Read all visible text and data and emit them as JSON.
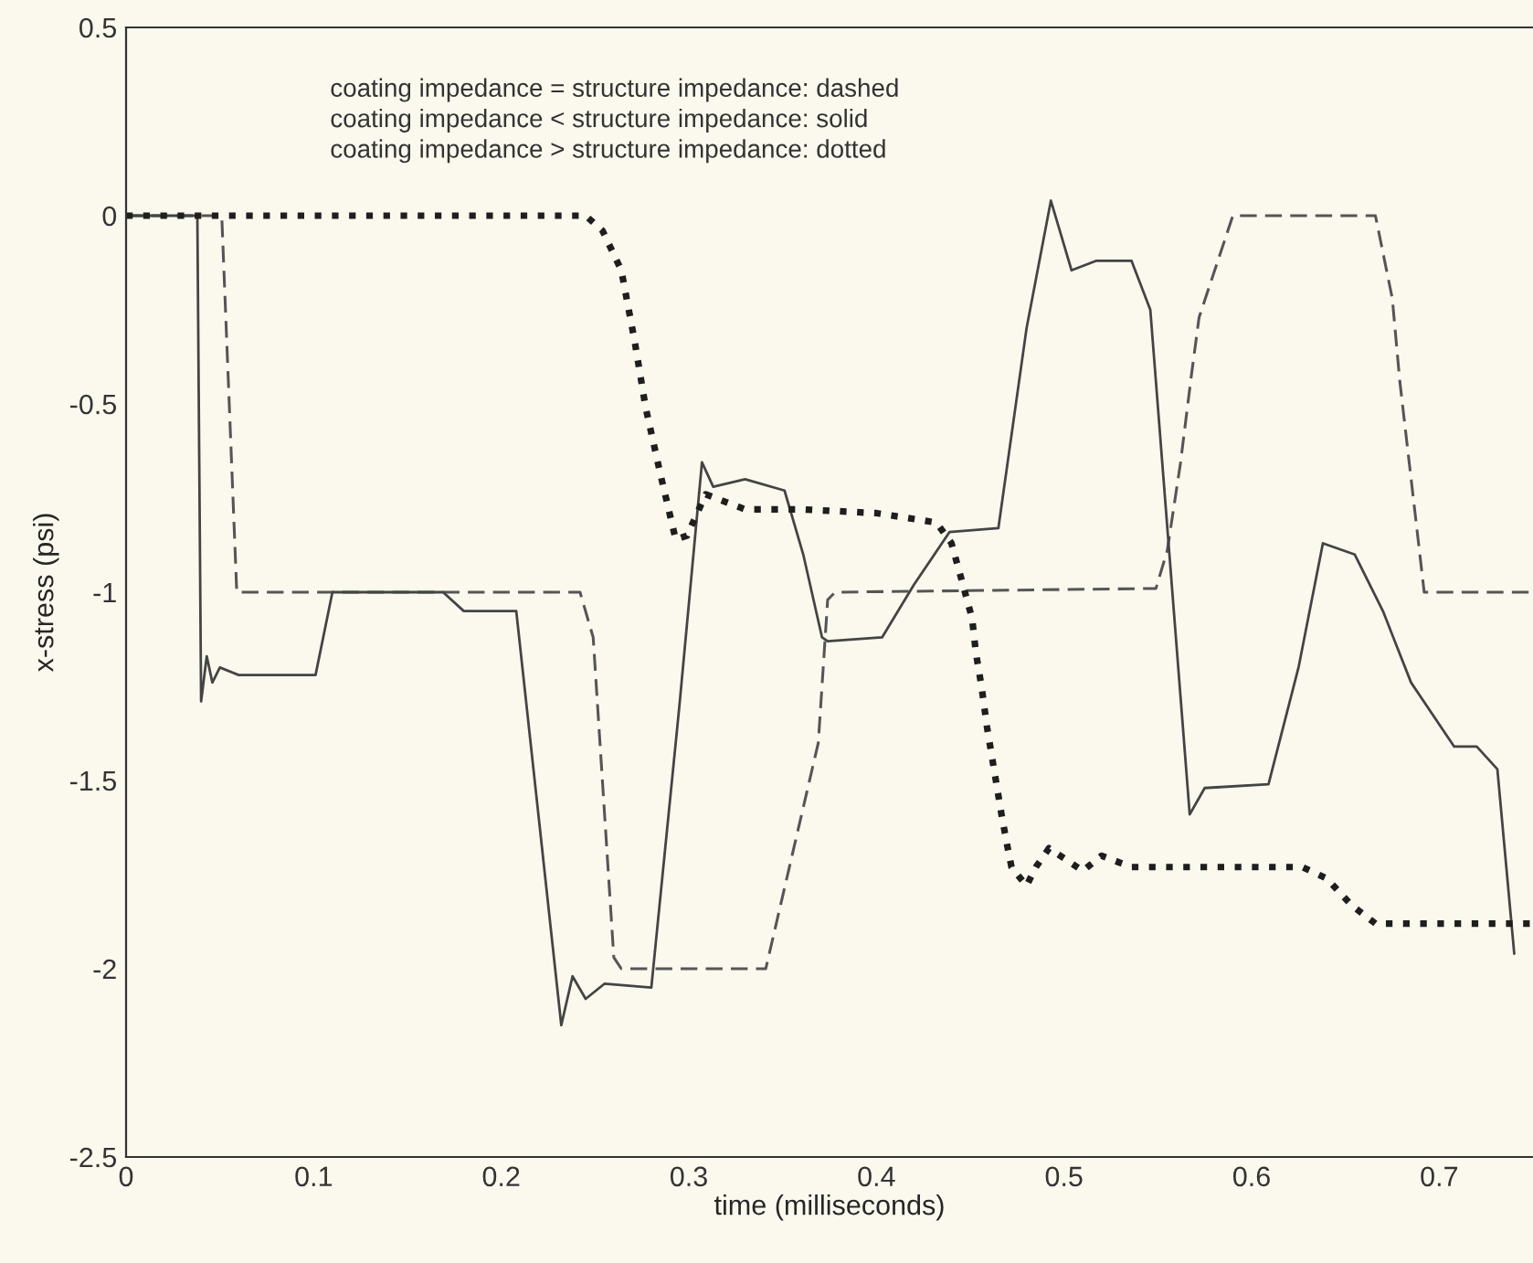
{
  "chart_data": {
    "type": "line",
    "xlabel": "time (milliseconds)",
    "ylabel": "x-stress (psi)",
    "annotations": [
      "coating impedance = structure impedance: dashed",
      "coating impedance < structure impedance: solid",
      "coating impedance > structure impedance: dotted"
    ],
    "xlim": [
      0,
      0.75
    ],
    "ylim": [
      -2.5,
      0.5
    ],
    "xticks": [
      0,
      0.1,
      0.2,
      0.3,
      0.4,
      0.5,
      0.6,
      0.7
    ],
    "yticks": [
      0.5,
      0,
      -0.5,
      -1,
      -1.5,
      -2,
      -2.5
    ],
    "grid": false,
    "series": [
      {
        "color": "#555555",
        "line_style": "dashed",
        "x": [
          0,
          0.051,
          0.059,
          0.242,
          0.249,
          0.26,
          0.264,
          0.341,
          0.369,
          0.374,
          0.378,
          0.549,
          0.555,
          0.562,
          0.568,
          0.572,
          0.59,
          0.666,
          0.675,
          0.679,
          0.692,
          0.75
        ],
        "values": [
          0,
          0,
          -1,
          -1,
          -1.12,
          -1.97,
          -2,
          -2,
          -1.4,
          -1.02,
          -1,
          -0.99,
          -0.89,
          -0.66,
          -0.42,
          -0.27,
          0,
          0,
          -0.22,
          -0.44,
          -1,
          -1
        ]
      },
      {
        "color": "#444444",
        "line_style": "solid",
        "x": [
          0,
          0.038,
          0.04,
          0.043,
          0.046,
          0.05,
          0.06,
          0.101,
          0.11,
          0.169,
          0.18,
          0.208,
          0.22,
          0.232,
          0.238,
          0.245,
          0.255,
          0.28,
          0.295,
          0.307,
          0.313,
          0.33,
          0.351,
          0.361,
          0.371,
          0.374,
          0.403,
          0.42,
          0.439,
          0.465,
          0.48,
          0.493,
          0.504,
          0.517,
          0.536,
          0.546,
          0.567,
          0.575,
          0.609,
          0.625,
          0.638,
          0.655,
          0.67,
          0.685,
          0.708,
          0.72,
          0.731,
          0.74
        ],
        "values": [
          0,
          0,
          -1.29,
          -1.17,
          -1.24,
          -1.2,
          -1.22,
          -1.22,
          -1,
          -1,
          -1.05,
          -1.05,
          -1.6,
          -2.15,
          -2.02,
          -2.08,
          -2.04,
          -2.05,
          -1.3,
          -0.655,
          -0.72,
          -0.7,
          -0.73,
          -0.9,
          -1.12,
          -1.13,
          -1.12,
          -0.98,
          -0.84,
          -0.83,
          -0.3,
          0.04,
          -0.145,
          -0.12,
          -0.12,
          -0.25,
          -1.59,
          -1.52,
          -1.51,
          -1.2,
          -0.87,
          -0.9,
          -1.05,
          -1.24,
          -1.41,
          -1.41,
          -1.47,
          -1.96
        ]
      },
      {
        "color": "#1e1e1e",
        "line_style": "dotted",
        "x": [
          0,
          0.245,
          0.254,
          0.264,
          0.271,
          0.277,
          0.285,
          0.293,
          0.299,
          0.309,
          0.33,
          0.36,
          0.4,
          0.432,
          0.44,
          0.445,
          0.451,
          0.453,
          0.456,
          0.459,
          0.464,
          0.467,
          0.47,
          0.472,
          0.48,
          0.485,
          0.492,
          0.51,
          0.52,
          0.536,
          0.627,
          0.64,
          0.653,
          0.666,
          0.75
        ],
        "values": [
          0,
          0,
          -0.04,
          -0.145,
          -0.33,
          -0.51,
          -0.69,
          -0.86,
          -0.85,
          -0.74,
          -0.78,
          -0.78,
          -0.79,
          -0.815,
          -0.87,
          -0.96,
          -1.07,
          -1.16,
          -1.25,
          -1.36,
          -1.51,
          -1.6,
          -1.68,
          -1.73,
          -1.78,
          -1.73,
          -1.68,
          -1.74,
          -1.7,
          -1.73,
          -1.73,
          -1.76,
          -1.83,
          -1.88,
          -1.88
        ]
      }
    ]
  }
}
